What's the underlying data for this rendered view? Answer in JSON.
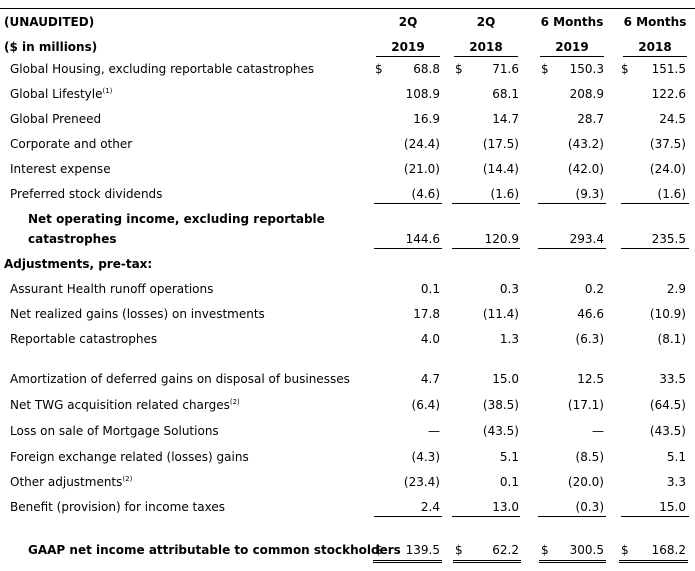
{
  "header": {
    "unaudited": "(UNAUDITED)",
    "units": "($ in millions)",
    "columns": [
      {
        "line1": "2Q",
        "line2": "2019"
      },
      {
        "line1": "2Q",
        "line2": "2018"
      },
      {
        "line1": "6 Months",
        "line2": "2019"
      },
      {
        "line1": "6 Months",
        "line2": "2018"
      }
    ]
  },
  "currency_symbol": "$",
  "rows": [
    {
      "label": "Global Housing, excluding reportable catastrophes",
      "sup": "",
      "values": [
        "68.8",
        "71.6",
        "150.3",
        "151.5"
      ]
    },
    {
      "label": "Global Lifestyle",
      "sup": "(1)",
      "values": [
        "108.9",
        "68.1",
        "208.9",
        "122.6"
      ]
    },
    {
      "label": "Global Preneed",
      "sup": "",
      "values": [
        "16.9",
        "14.7",
        "28.7",
        "24.5"
      ]
    },
    {
      "label": "Corporate and other",
      "sup": "",
      "values": [
        "(24.4)",
        "(17.5)",
        "(43.2)",
        "(37.5)"
      ]
    },
    {
      "label": "Interest expense",
      "sup": "",
      "values": [
        "(21.0)",
        "(14.4)",
        "(42.0)",
        "(24.0)"
      ]
    },
    {
      "label": "Preferred stock dividends",
      "sup": "",
      "values": [
        "(4.6)",
        "(1.6)",
        "(9.3)",
        "(1.6)"
      ]
    }
  ],
  "net_operating": {
    "label_line1": "Net operating income, excluding reportable",
    "label_line2": "catastrophes",
    "values": [
      "144.6",
      "120.9",
      "293.4",
      "235.5"
    ]
  },
  "adjustments_heading": "Adjustments, pre-tax:",
  "adjustments_a": [
    {
      "label": "Assurant Health runoff operations",
      "sup": "",
      "values": [
        "0.1",
        "0.3",
        "0.2",
        "2.9"
      ]
    },
    {
      "label": "Net realized gains (losses) on investments",
      "sup": "",
      "values": [
        "17.8",
        "(11.4)",
        "46.6",
        "(10.9)"
      ]
    },
    {
      "label": "Reportable catastrophes",
      "sup": "",
      "values": [
        "4.0",
        "1.3",
        "(6.3)",
        "(8.1)"
      ]
    }
  ],
  "adjustments_b": [
    {
      "label": "Amortization of deferred gains on disposal of businesses",
      "sup": "",
      "values": [
        "4.7",
        "15.0",
        "12.5",
        "33.5"
      ]
    },
    {
      "label": "Net TWG acquisition related charges",
      "sup": "(2)",
      "values": [
        "(6.4)",
        "(38.5)",
        "(17.1)",
        "(64.5)"
      ]
    },
    {
      "label": "Loss on sale of Mortgage Solutions",
      "sup": "",
      "values": [
        "—",
        "(43.5)",
        "—",
        "(43.5)"
      ]
    },
    {
      "label": "Foreign exchange related (losses) gains",
      "sup": "",
      "values": [
        "(4.3)",
        "5.1",
        "(8.5)",
        "5.1"
      ]
    },
    {
      "label": "Other adjustments",
      "sup": "(2)",
      "values": [
        "(23.4)",
        "0.1",
        "(20.0)",
        "3.3"
      ]
    },
    {
      "label": "Benefit (provision) for income taxes",
      "sup": "",
      "values": [
        "2.4",
        "13.0",
        "(0.3)",
        "15.0"
      ]
    }
  ],
  "gaap": {
    "label": "GAAP net income attributable to common stockholders",
    "values": [
      "139.5",
      "62.2",
      "300.5",
      "168.2"
    ]
  }
}
